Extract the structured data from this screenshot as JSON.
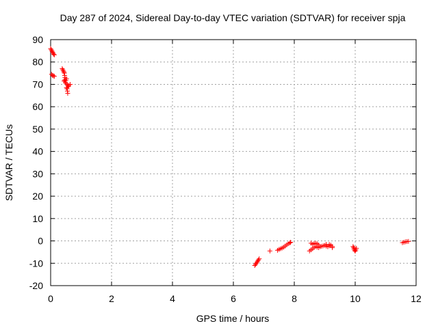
{
  "chart_data": {
    "type": "scatter",
    "title": "Day 287 of 2024, Sidereal Day-to-day VTEC variation (SDTVAR) for receiver spja",
    "xlabel": "GPS time / hours",
    "ylabel": "SDTVAR / TECUs",
    "xlim": [
      0,
      12
    ],
    "ylim": [
      -20,
      90
    ],
    "xticks": [
      "0",
      "2",
      "4",
      "6",
      "8",
      "10",
      "12"
    ],
    "yticks": [
      "-20",
      "-10",
      "0",
      "10",
      "20",
      "30",
      "40",
      "50",
      "60",
      "70",
      "80",
      "90"
    ],
    "grid": true,
    "legend": "none",
    "marker": "plus",
    "color": "#ff0000",
    "points": [
      [
        0.0,
        86.0
      ],
      [
        0.02,
        85.5
      ],
      [
        0.04,
        85.0
      ],
      [
        0.06,
        84.5
      ],
      [
        0.08,
        84.0
      ],
      [
        0.1,
        83.5
      ],
      [
        0.12,
        83.2
      ],
      [
        0.03,
        74.5
      ],
      [
        0.06,
        74.0
      ],
      [
        0.09,
        73.8
      ],
      [
        0.12,
        73.6
      ],
      [
        0.38,
        77.0
      ],
      [
        0.4,
        76.5
      ],
      [
        0.42,
        76.0
      ],
      [
        0.44,
        75.5
      ],
      [
        0.45,
        75.0
      ],
      [
        0.46,
        74.0
      ],
      [
        0.47,
        73.0
      ],
      [
        0.46,
        72.0
      ],
      [
        0.44,
        71.5
      ],
      [
        0.48,
        71.0
      ],
      [
        0.5,
        71.8
      ],
      [
        0.52,
        72.5
      ],
      [
        0.5,
        70.5
      ],
      [
        0.54,
        70.0
      ],
      [
        0.56,
        69.5
      ],
      [
        0.58,
        69.0
      ],
      [
        0.6,
        69.5
      ],
      [
        0.64,
        70.0
      ],
      [
        0.52,
        68.5
      ],
      [
        0.54,
        68.0
      ],
      [
        0.55,
        67.0
      ],
      [
        0.56,
        66.0
      ],
      [
        6.7,
        -11.0
      ],
      [
        6.73,
        -10.5
      ],
      [
        6.75,
        -10.0
      ],
      [
        6.78,
        -9.5
      ],
      [
        6.8,
        -9.0
      ],
      [
        6.82,
        -8.5
      ],
      [
        6.85,
        -8.0
      ],
      [
        7.2,
        -4.5
      ],
      [
        7.45,
        -4.2
      ],
      [
        7.5,
        -3.8
      ],
      [
        7.55,
        -3.5
      ],
      [
        7.6,
        -3.2
      ],
      [
        7.65,
        -2.8
      ],
      [
        7.7,
        -2.3
      ],
      [
        7.75,
        -1.8
      ],
      [
        7.8,
        -1.3
      ],
      [
        7.85,
        -0.9
      ],
      [
        7.88,
        -0.6
      ],
      [
        8.5,
        -4.5
      ],
      [
        8.55,
        -4.0
      ],
      [
        8.6,
        -3.5
      ],
      [
        8.65,
        -3.0
      ],
      [
        8.55,
        -1.0
      ],
      [
        8.6,
        -1.5
      ],
      [
        8.65,
        -1.2
      ],
      [
        8.7,
        -1.0
      ],
      [
        8.75,
        -1.3
      ],
      [
        8.8,
        -1.8
      ],
      [
        8.7,
        -2.5
      ],
      [
        8.75,
        -2.8
      ],
      [
        8.8,
        -3.0
      ],
      [
        8.85,
        -2.6
      ],
      [
        8.9,
        -2.4
      ],
      [
        8.95,
        -2.2
      ],
      [
        9.0,
        -2.0
      ],
      [
        9.05,
        -2.3
      ],
      [
        9.1,
        -2.6
      ],
      [
        9.15,
        -2.2
      ],
      [
        9.2,
        -1.9
      ],
      [
        9.25,
        -2.5
      ],
      [
        9.05,
        -1.5
      ],
      [
        9.15,
        -1.6
      ],
      [
        9.25,
        -3.0
      ],
      [
        9.93,
        -2.5
      ],
      [
        9.95,
        -3.0
      ],
      [
        9.96,
        -3.6
      ],
      [
        9.98,
        -4.2
      ],
      [
        10.0,
        -4.6
      ],
      [
        10.02,
        -4.0
      ],
      [
        10.04,
        -3.3
      ],
      [
        11.55,
        -0.8
      ],
      [
        11.6,
        -0.6
      ],
      [
        11.65,
        -0.4
      ],
      [
        11.7,
        -0.3
      ],
      [
        11.75,
        -0.2
      ]
    ]
  }
}
